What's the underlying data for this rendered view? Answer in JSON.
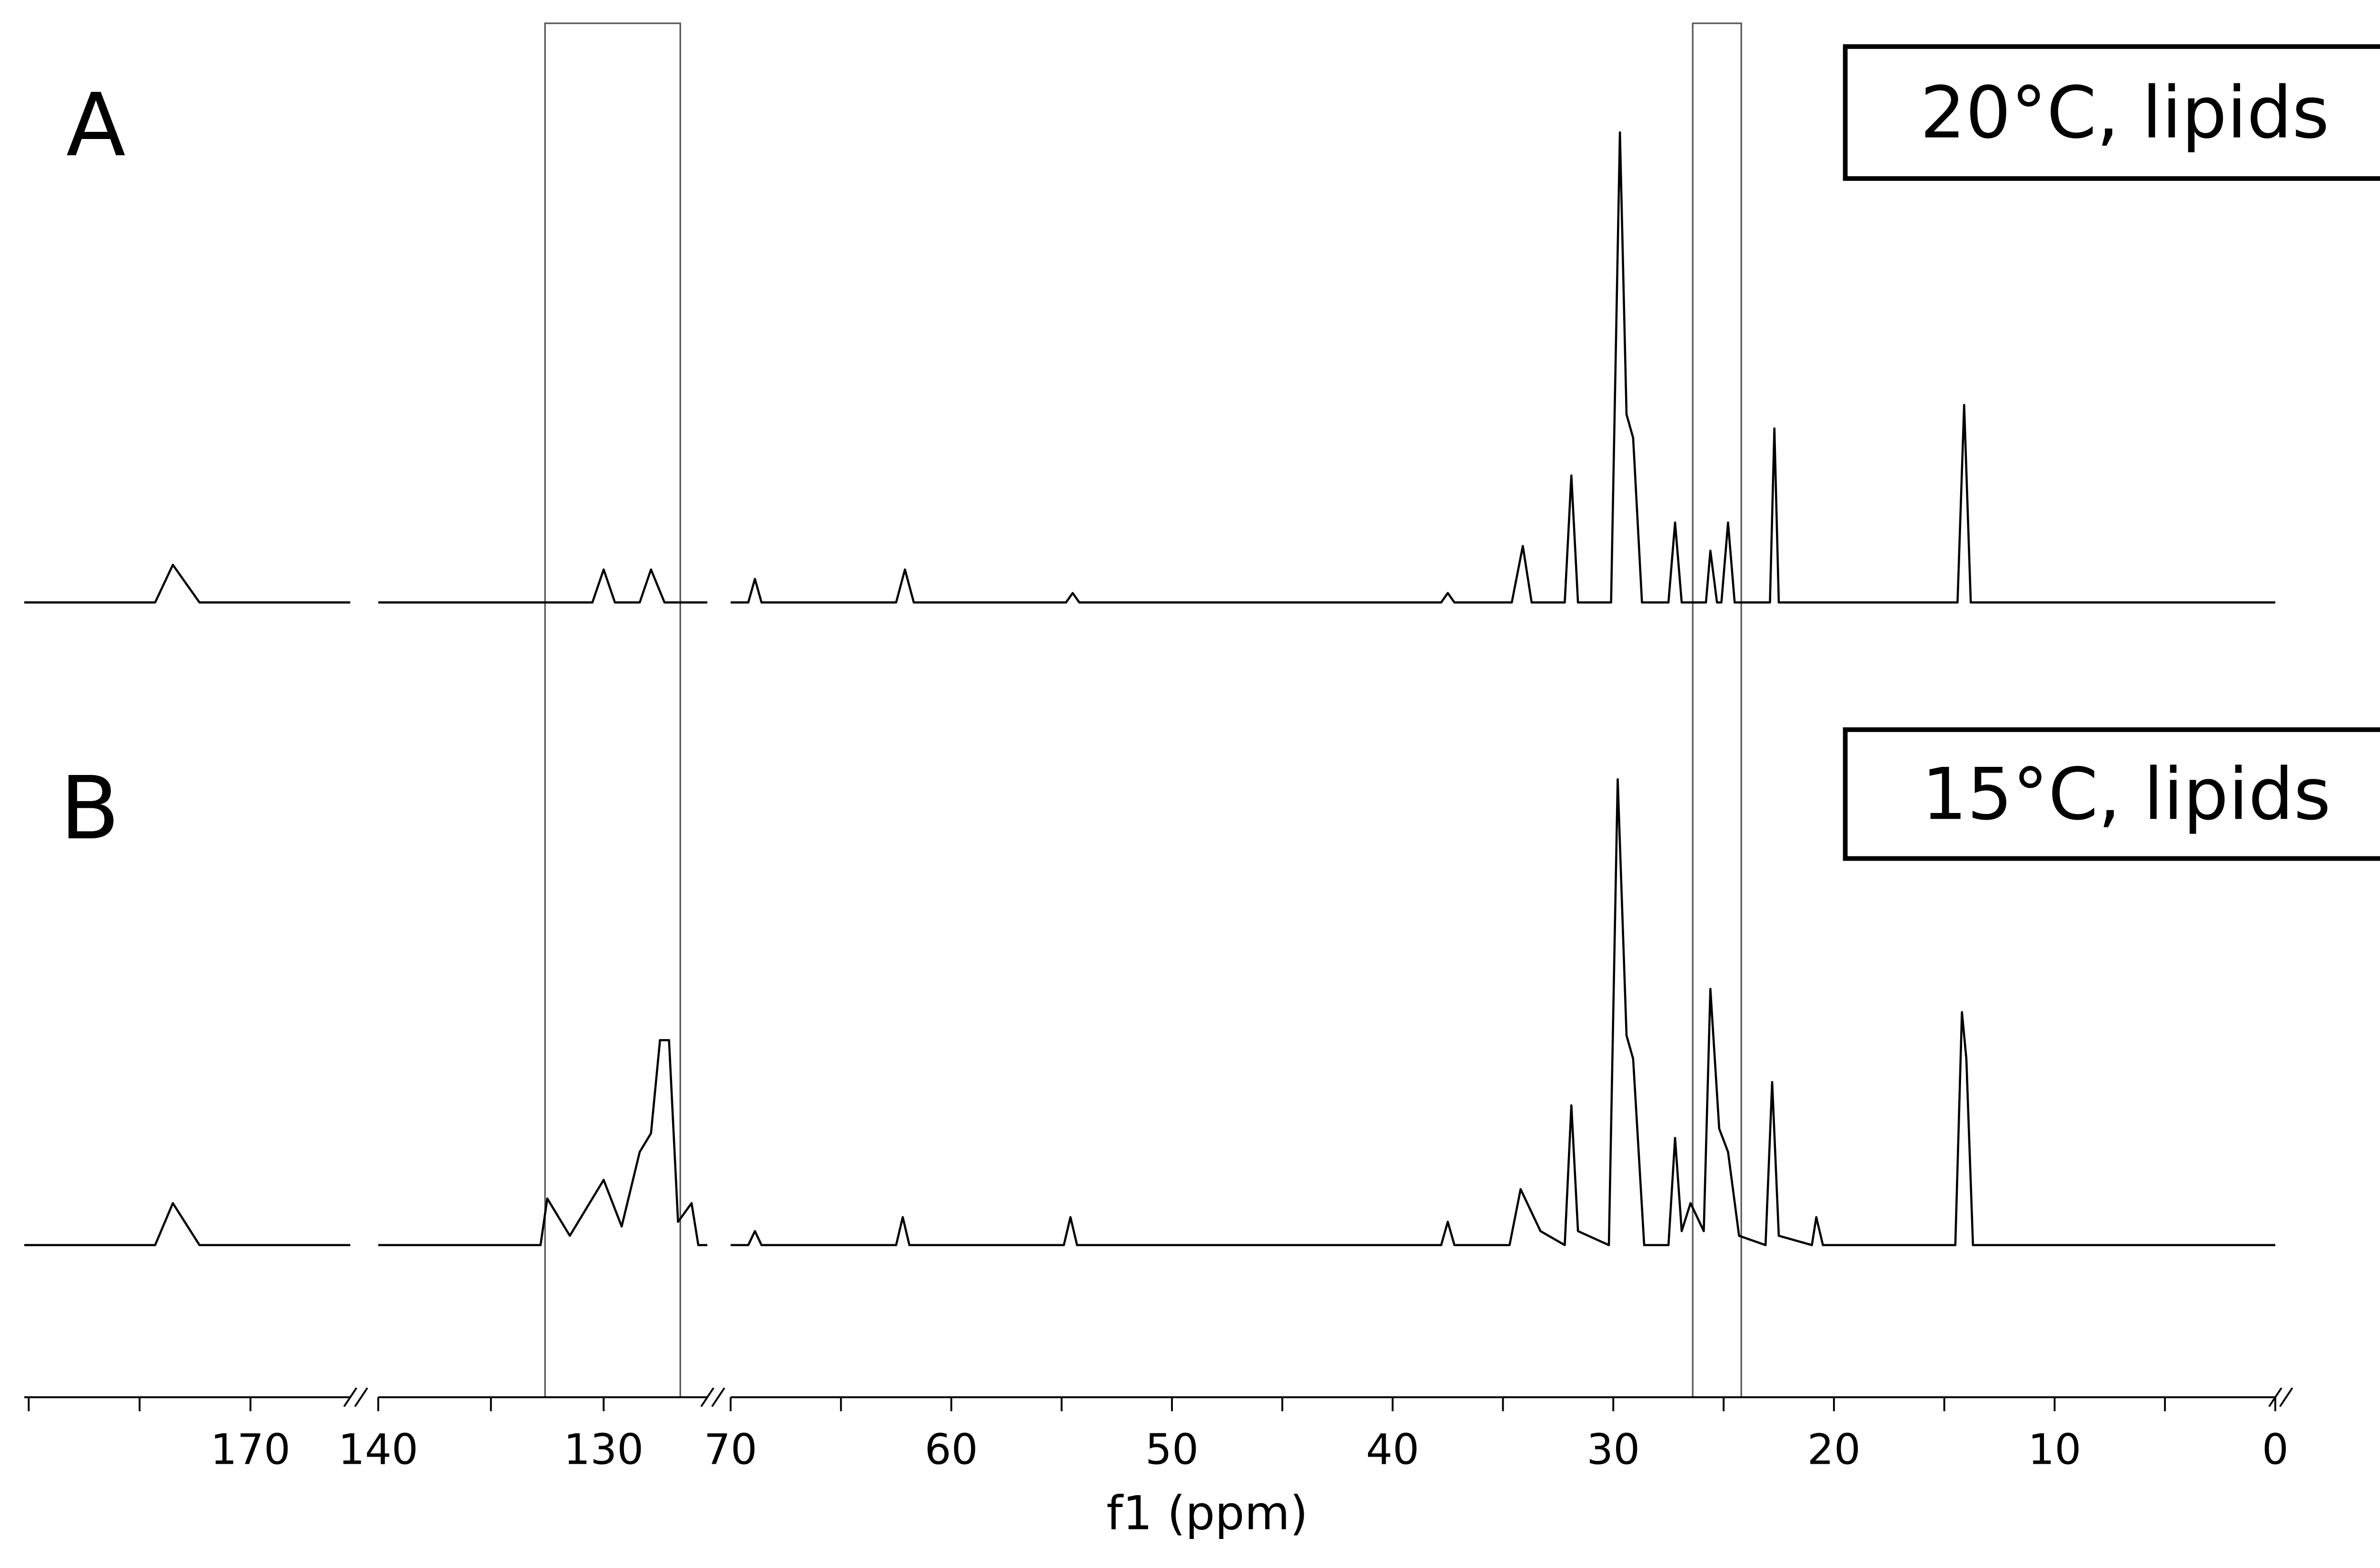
{
  "chart_data": {
    "type": "line",
    "x_label": "f1 (ppm)",
    "x_segments": [
      [
        180.2,
        165.5
      ],
      [
        140,
        125.4
      ],
      [
        70,
        0
      ]
    ],
    "xticks": [
      170,
      140,
      130,
      70,
      60,
      50,
      40,
      30,
      20,
      10,
      0
    ],
    "minor_xticks": [
      180,
      175,
      135,
      65,
      55,
      45,
      35,
      25,
      15,
      5
    ],
    "ylim": [
      -20,
      110
    ],
    "highlight_regions": [
      [
        132.6,
        126.6
      ],
      [
        26.4,
        24.2
      ]
    ],
    "series": [
      {
        "name": "20°C, lipids",
        "panel": "A",
        "color": "#000000",
        "x": [
          180.2,
          174.3,
          173.5,
          172.3,
          165.5,
          null,
          140,
          130.5,
          130.0,
          129.5,
          128.4,
          127.9,
          127.3,
          125.4,
          null,
          70,
          69.2,
          68.9,
          68.6,
          62.5,
          62.1,
          61.7,
          54.8,
          54.5,
          54.2,
          37.8,
          37.5,
          37.2,
          34.6,
          34.1,
          33.7,
          32.2,
          31.9,
          31.6,
          30.1,
          29.7,
          29.4,
          29.1,
          28.7,
          27.5,
          27.2,
          26.9,
          25.8,
          25.6,
          25.3,
          25.1,
          24.8,
          24.5,
          22.9,
          22.7,
          22.5,
          14.4,
          14.1,
          13.8,
          0
        ],
        "values": [
          0,
          0,
          8,
          0,
          0,
          null,
          0,
          0,
          7,
          0,
          0,
          7,
          0,
          0,
          null,
          0,
          0,
          5,
          0,
          0,
          7,
          0,
          0,
          2,
          0,
          0,
          2,
          0,
          0,
          12,
          0,
          0,
          27,
          0,
          0,
          100,
          40,
          35,
          0,
          0,
          17,
          0,
          0,
          11,
          0,
          0,
          17,
          0,
          0,
          37,
          0,
          0,
          42,
          0,
          0
        ]
      },
      {
        "name": "15°C, lipids",
        "panel": "B",
        "color": "#000000",
        "x": [
          180.2,
          174.3,
          173.5,
          172.3,
          165.5,
          null,
          140,
          132.8,
          132.5,
          131.5,
          130.0,
          129.2,
          128.4,
          127.9,
          127.5,
          127.1,
          126.7,
          126.1,
          125.8,
          125.4,
          null,
          70,
          69.2,
          68.9,
          68.6,
          62.5,
          62.2,
          61.9,
          54.9,
          54.6,
          54.3,
          37.8,
          37.5,
          37.2,
          34.7,
          34.2,
          33.3,
          32.2,
          31.9,
          31.6,
          30.2,
          29.8,
          29.4,
          29.1,
          28.6,
          27.5,
          27.2,
          26.9,
          26.5,
          25.9,
          25.6,
          25.2,
          24.8,
          24.3,
          23.1,
          22.8,
          22.5,
          21.0,
          20.8,
          20.5,
          14.5,
          14.2,
          14.0,
          13.7,
          0
        ],
        "values": [
          0,
          0,
          9,
          0,
          0,
          null,
          0,
          0,
          10,
          2,
          14,
          4,
          20,
          24,
          44,
          44,
          5,
          9,
          0,
          0,
          null,
          0,
          0,
          3,
          0,
          0,
          6,
          0,
          0,
          6,
          0,
          0,
          5,
          0,
          0,
          12,
          3,
          0,
          30,
          3,
          0,
          100,
          45,
          40,
          0,
          0,
          23,
          3,
          9,
          3,
          55,
          25,
          20,
          2,
          0,
          35,
          2,
          0,
          6,
          0,
          0,
          50,
          40,
          0,
          0
        ]
      }
    ]
  }
}
